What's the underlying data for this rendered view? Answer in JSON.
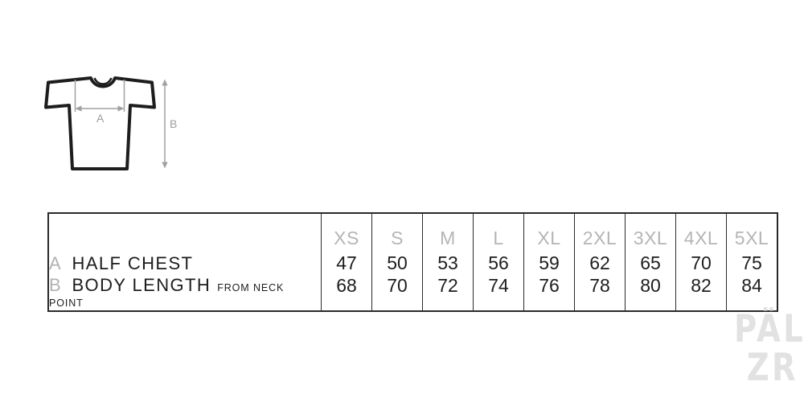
{
  "colors": {
    "background": "#ffffff",
    "text": "#1d1d1d",
    "muted_gray": "#b5b5b5",
    "diagram_gray": "#a0a0a0",
    "border": "#2a2a2a",
    "logo_gray": "#e2e2e2"
  },
  "diagram": {
    "description": "t-shirt outline with chest width and body length dimension arrows",
    "label_a": "A",
    "label_b": "B"
  },
  "table": {
    "sizes": [
      "XS",
      "S",
      "M",
      "L",
      "XL",
      "2XL",
      "3XL",
      "4XL",
      "5XL"
    ],
    "rows": [
      {
        "key": "A",
        "label": "HALF CHEST",
        "sublabel": "",
        "values": [
          "47",
          "50",
          "53",
          "56",
          "59",
          "62",
          "65",
          "70",
          "75"
        ]
      },
      {
        "key": "B",
        "label": "BODY LENGTH",
        "sublabel": "FROM NECK POINT",
        "values": [
          "68",
          "70",
          "72",
          "74",
          "76",
          "78",
          "80",
          "82",
          "84"
        ]
      }
    ]
  },
  "logo": {
    "line1": "PÄL",
    "line2": "ZR"
  },
  "chart_data": {
    "type": "table",
    "title": "T-shirt size chart (cm)",
    "columns": [
      "XS",
      "S",
      "M",
      "L",
      "XL",
      "2XL",
      "3XL",
      "4XL",
      "5XL"
    ],
    "rows": [
      {
        "id": "A",
        "label": "HALF CHEST",
        "values": [
          47,
          50,
          53,
          56,
          59,
          62,
          65,
          70,
          75
        ]
      },
      {
        "id": "B",
        "label": "BODY LENGTH FROM NECK POINT",
        "values": [
          68,
          70,
          72,
          74,
          76,
          78,
          80,
          82,
          84
        ]
      }
    ]
  }
}
